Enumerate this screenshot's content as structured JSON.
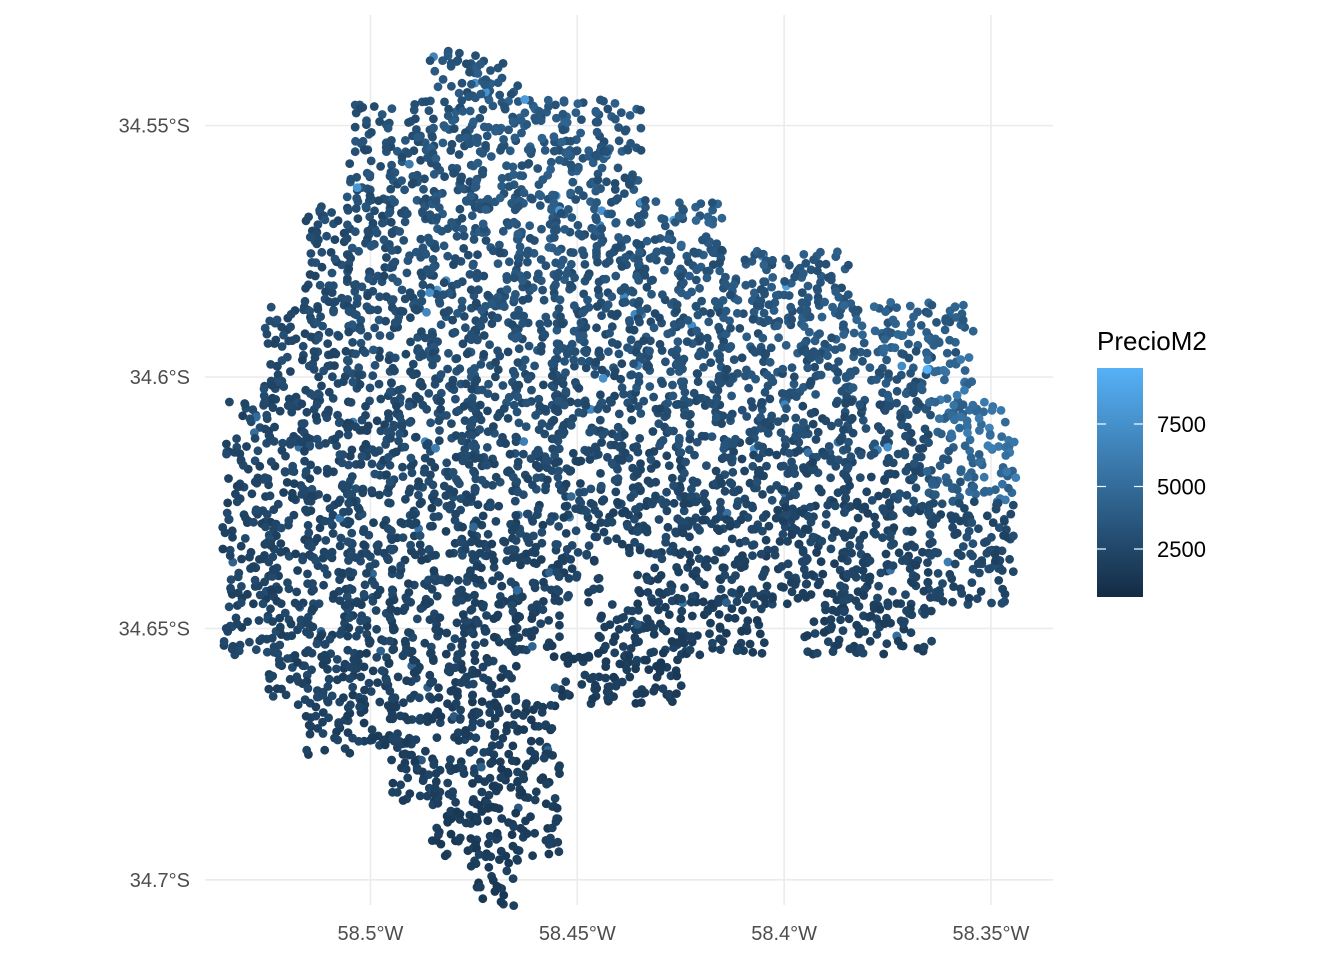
{
  "chart_data": {
    "type": "scatter",
    "title": "",
    "xlabel": "",
    "ylabel": "",
    "xlim": [
      -58.54,
      -58.335
    ],
    "ylim": [
      -34.705,
      -34.528
    ],
    "grid": true,
    "x_ticks": [
      {
        "value": -58.5,
        "label": "58.5°W"
      },
      {
        "value": -58.45,
        "label": "58.45°W"
      },
      {
        "value": -58.4,
        "label": "58.4°W"
      },
      {
        "value": -58.35,
        "label": "58.35°W"
      }
    ],
    "y_ticks": [
      {
        "value": -34.55,
        "label": "34.55°S"
      },
      {
        "value": -34.6,
        "label": "34.6°S"
      },
      {
        "value": -34.65,
        "label": "34.65°S"
      },
      {
        "value": -34.7,
        "label": "34.7°S"
      }
    ],
    "color_scale": {
      "variable": "PrecioM2",
      "low_color": "#132B43",
      "high_color": "#56B1F7",
      "range": [
        580,
        9740
      ],
      "ticks": [
        {
          "value": 2500,
          "label": "2500"
        },
        {
          "value": 5000,
          "label": "5000"
        },
        {
          "value": 7500,
          "label": "7500"
        }
      ],
      "legend_position": "right"
    },
    "points_by_latitude": [
      {
        "lat": -34.54,
        "lons": [
          -58.48,
          -58.47
        ],
        "prices": [
          3300,
          3400
        ]
      },
      {
        "lat": -34.55,
        "lons": [
          -58.5,
          -58.49,
          -58.48,
          -58.47,
          -58.46,
          -58.45,
          -58.44
        ],
        "prices": [
          3000,
          3100,
          3400,
          3500,
          3800,
          3700,
          3500
        ]
      },
      {
        "lat": -34.56,
        "lons": [
          -58.5,
          -58.49,
          -58.48,
          -58.47,
          -58.46,
          -58.45,
          -58.44
        ],
        "prices": [
          3000,
          3100,
          3300,
          3500,
          3600,
          3600,
          3400
        ]
      },
      {
        "lat": -34.57,
        "lons": [
          -58.51,
          -58.5,
          -58.49,
          -58.48,
          -58.47,
          -58.46,
          -58.45,
          -58.44,
          -58.43,
          -58.42
        ],
        "prices": [
          2800,
          2900,
          3100,
          3300,
          3400,
          3500,
          3500,
          3400,
          3500,
          4000
        ]
      },
      {
        "lat": -34.58,
        "lons": [
          -58.51,
          -58.5,
          -58.49,
          -58.48,
          -58.47,
          -58.46,
          -58.45,
          -58.44,
          -58.43,
          -58.42,
          -58.41,
          -58.4,
          -58.39
        ],
        "prices": [
          2700,
          2800,
          3000,
          3100,
          3200,
          3300,
          3300,
          3200,
          3200,
          3400,
          3500,
          3600,
          3500
        ]
      },
      {
        "lat": -34.59,
        "lons": [
          -58.52,
          -58.51,
          -58.5,
          -58.49,
          -58.48,
          -58.47,
          -58.46,
          -58.45,
          -58.44,
          -58.43,
          -58.42,
          -58.41,
          -58.4,
          -58.39,
          -58.38,
          -58.37,
          -58.36
        ],
        "prices": [
          2600,
          2700,
          2900,
          3000,
          3000,
          3100,
          3100,
          3100,
          3000,
          3100,
          3200,
          3300,
          3400,
          3600,
          4000,
          4200,
          3800
        ]
      },
      {
        "lat": -34.6,
        "lons": [
          -58.52,
          -58.51,
          -58.5,
          -58.49,
          -58.48,
          -58.47,
          -58.46,
          -58.45,
          -58.44,
          -58.43,
          -58.42,
          -58.41,
          -58.4,
          -58.39,
          -58.38,
          -58.37,
          -58.36
        ],
        "prices": [
          2500,
          2600,
          2700,
          2800,
          2900,
          2900,
          2900,
          2900,
          2900,
          3000,
          3000,
          3100,
          3100,
          3200,
          3300,
          3300,
          5200
        ]
      },
      {
        "lat": -34.61,
        "lons": [
          -58.53,
          -58.52,
          -58.51,
          -58.5,
          -58.49,
          -58.48,
          -58.47,
          -58.46,
          -58.45,
          -58.44,
          -58.43,
          -58.42,
          -58.41,
          -58.4,
          -58.39,
          -58.38,
          -58.37,
          -58.36,
          -58.35
        ],
        "prices": [
          2400,
          2500,
          2500,
          2600,
          2700,
          2700,
          2700,
          2800,
          2800,
          2800,
          2800,
          2900,
          2900,
          2900,
          2800,
          2800,
          2900,
          4600,
          5600
        ]
      },
      {
        "lat": -34.62,
        "lons": [
          -58.53,
          -58.52,
          -58.51,
          -58.5,
          -58.49,
          -58.48,
          -58.47,
          -58.46,
          -58.45,
          -58.44,
          -58.43,
          -58.42,
          -58.41,
          -58.4,
          -58.39,
          -58.38,
          -58.37,
          -58.36,
          -58.35,
          -58.344
        ],
        "prices": [
          2400,
          2400,
          2500,
          2500,
          2600,
          2600,
          2600,
          2600,
          2600,
          2600,
          2600,
          2600,
          2600,
          2600,
          2600,
          2600,
          2700,
          3800,
          5000,
          5800
        ]
      },
      {
        "lat": -34.63,
        "lons": [
          -58.53,
          -58.52,
          -58.51,
          -58.5,
          -58.49,
          -58.48,
          -58.47,
          -58.46,
          -58.45,
          -58.44,
          -58.43,
          -58.42,
          -58.41,
          -58.4,
          -58.39,
          -58.38,
          -58.37,
          -58.36,
          -58.35
        ],
        "prices": [
          2300,
          2400,
          2400,
          2500,
          2500,
          2400,
          2400,
          2400,
          2400,
          2300,
          2300,
          2300,
          2300,
          2300,
          2300,
          2300,
          2400,
          2600,
          2700
        ]
      },
      {
        "lat": -34.64,
        "lons": [
          -58.53,
          -58.52,
          -58.51,
          -58.5,
          -58.49,
          -58.48,
          -58.47,
          -58.46,
          -58.45,
          -58.43,
          -58.42,
          -58.41,
          -58.4,
          -58.39,
          -58.38,
          -58.37,
          -58.36,
          -58.35
        ],
        "prices": [
          2300,
          2300,
          2400,
          2400,
          2300,
          2300,
          2300,
          2200,
          2200,
          2100,
          2100,
          2100,
          2100,
          2100,
          2200,
          2300,
          2400,
          2500
        ]
      },
      {
        "lat": -34.65,
        "lons": [
          -58.53,
          -58.52,
          -58.51,
          -58.5,
          -58.49,
          -58.48,
          -58.47,
          -58.46,
          -58.44,
          -58.43,
          -58.42,
          -58.41,
          -58.39,
          -58.38,
          -58.37
        ],
        "prices": [
          2300,
          2300,
          2300,
          2200,
          2200,
          2100,
          2100,
          2000,
          1900,
          1900,
          1900,
          1900,
          2000,
          2100,
          2100
        ]
      },
      {
        "lat": -34.66,
        "lons": [
          -58.52,
          -58.51,
          -58.5,
          -58.49,
          -58.48,
          -58.47,
          -58.45,
          -58.44,
          -58.43
        ],
        "prices": [
          2200,
          2200,
          2100,
          2100,
          2000,
          1900,
          1800,
          1800,
          1800
        ]
      },
      {
        "lat": -34.67,
        "lons": [
          -58.51,
          -58.5,
          -58.49,
          -58.48,
          -58.47,
          -58.46
        ],
        "prices": [
          2100,
          2000,
          2000,
          1900,
          1900,
          1800
        ]
      },
      {
        "lat": -34.68,
        "lons": [
          -58.49,
          -58.48,
          -58.47,
          -58.46
        ],
        "prices": [
          1900,
          1900,
          1800,
          1800
        ]
      },
      {
        "lat": -34.69,
        "lons": [
          -58.48,
          -58.47,
          -58.46
        ],
        "prices": [
          1800,
          1800,
          1800
        ]
      },
      {
        "lat": -34.7,
        "lons": [
          -58.47
        ],
        "prices": [
          1800
        ]
      }
    ]
  }
}
